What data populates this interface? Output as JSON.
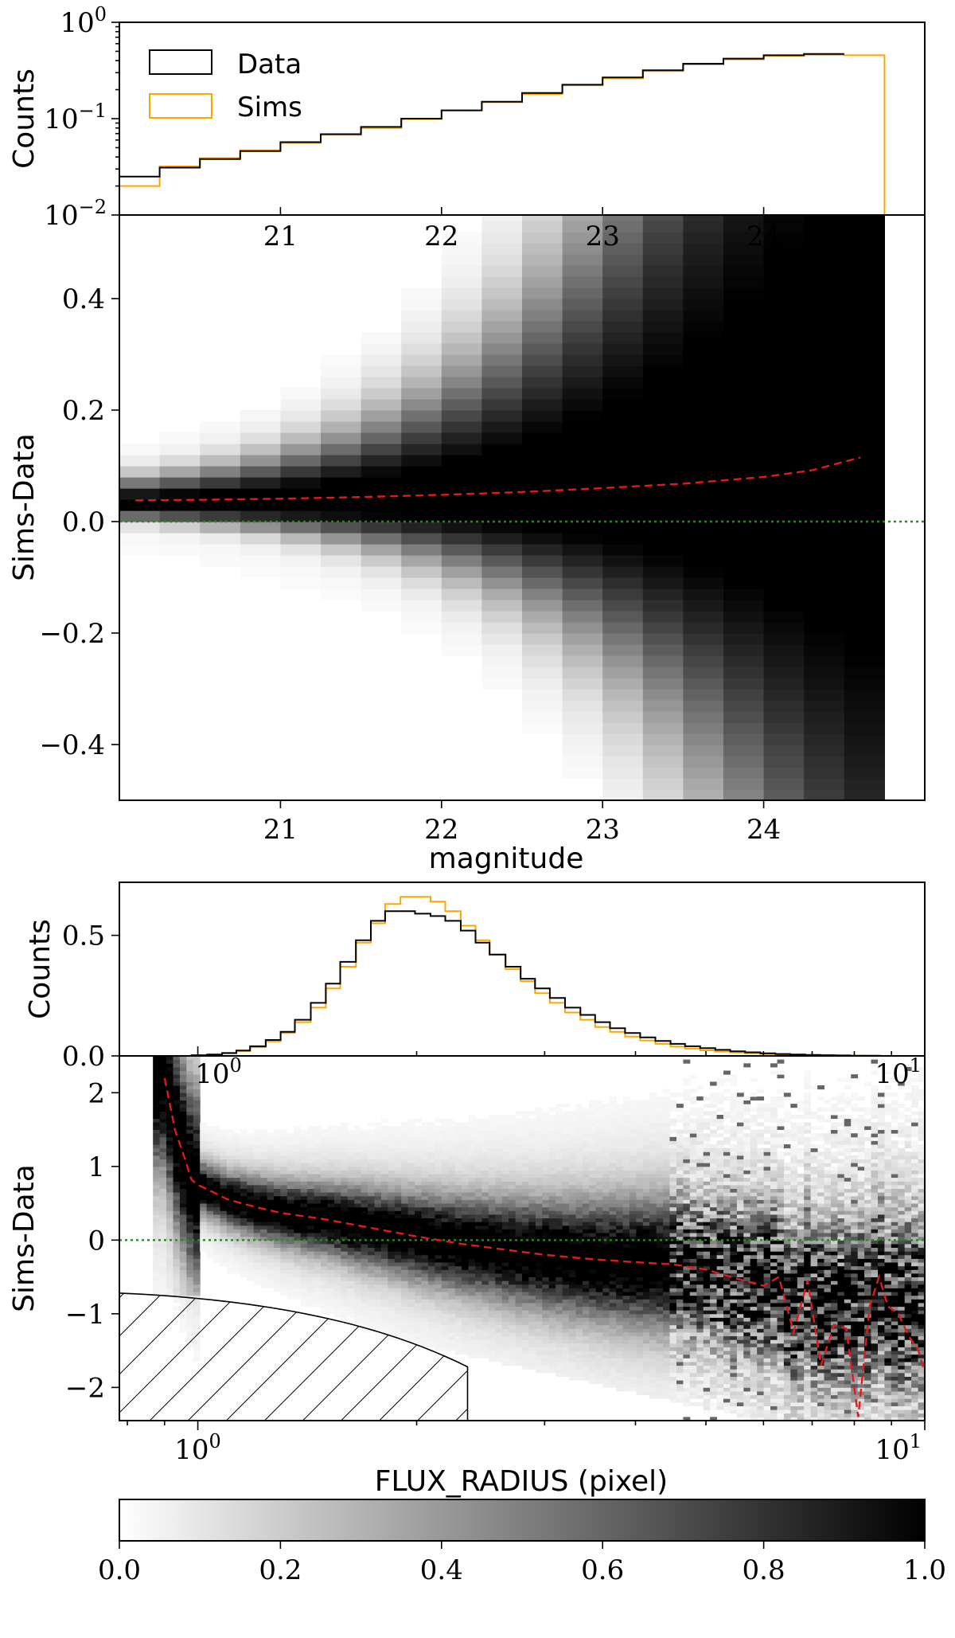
{
  "colors": {
    "data": "#000000",
    "sims": "#ffa500",
    "median": "#e31a1c",
    "zero": "#228b22",
    "cmap": [
      "#ffffff",
      "#000000"
    ]
  },
  "chart_data": [
    {
      "type": "line",
      "panel": "mag-hist",
      "ylabel": "Counts",
      "yscale": "log",
      "ylim": [
        0.01,
        1
      ],
      "yticks": [
        {
          "v": 1,
          "base": "10",
          "exp": "0"
        },
        {
          "v": 0.1,
          "base": "10",
          "exp": "−1"
        },
        {
          "v": 0.01,
          "base": "10",
          "exp": "−2"
        }
      ],
      "xlim": [
        20.0,
        25.0
      ],
      "xticks": [
        "21",
        "22",
        "23",
        "24"
      ],
      "legend": {
        "position": "top-left",
        "entries": [
          "Data",
          "Sims"
        ]
      },
      "bin_edges": [
        20.0,
        20.25,
        20.5,
        20.75,
        21.0,
        21.25,
        21.5,
        21.75,
        22.0,
        22.25,
        22.5,
        22.75,
        23.0,
        23.25,
        23.5,
        23.75,
        24.0,
        24.25,
        24.5,
        24.75
      ],
      "series": [
        {
          "name": "Data",
          "values": [
            0.025,
            0.031,
            0.038,
            0.046,
            0.057,
            0.069,
            0.082,
            0.1,
            0.122,
            0.15,
            0.185,
            0.225,
            0.268,
            0.318,
            0.372,
            0.42,
            0.455,
            0.47,
            null
          ]
        },
        {
          "name": "Sims",
          "values": [
            0.02,
            0.032,
            0.039,
            0.047,
            0.056,
            0.068,
            0.08,
            0.099,
            0.122,
            0.148,
            0.18,
            0.222,
            0.262,
            0.312,
            0.365,
            0.412,
            0.448,
            0.46,
            0.455
          ]
        }
      ]
    },
    {
      "type": "heatmap",
      "panel": "mag-residual",
      "xlabel": "magnitude",
      "ylabel": "Sims-Data",
      "xlim": [
        20.0,
        25.0
      ],
      "ylim": [
        -0.5,
        0.55
      ],
      "xticks": [
        "21",
        "22",
        "23",
        "24"
      ],
      "yticks": [
        {
          "v": 0.4,
          "label": "0.4"
        },
        {
          "v": 0.2,
          "label": "0.2"
        },
        {
          "v": 0.0,
          "label": "0.0"
        },
        {
          "v": -0.2,
          "label": "−0.2"
        },
        {
          "v": -0.4,
          "label": "−0.4"
        }
      ],
      "median": {
        "x": [
          20.1,
          20.5,
          21.0,
          21.5,
          22.0,
          22.5,
          23.0,
          23.5,
          24.0,
          24.3,
          24.6
        ],
        "y": [
          0.038,
          0.039,
          0.041,
          0.044,
          0.048,
          0.053,
          0.06,
          0.068,
          0.08,
          0.092,
          0.115
        ]
      },
      "zero_line": 0.0
    },
    {
      "type": "line",
      "panel": "radius-hist",
      "ylabel": "Counts",
      "ylim": [
        0,
        0.72
      ],
      "yticks": [
        {
          "v": 0.5,
          "label": "0.5"
        },
        {
          "v": 0.0,
          "label": "0.0"
        }
      ],
      "xscale": "log",
      "xlim": [
        0.78,
        10
      ],
      "xticks": [
        {
          "v": 1,
          "base": "10",
          "exp": "0"
        },
        {
          "v": 10,
          "base": "10",
          "exp": "1"
        }
      ],
      "bin_edges": [
        0.78,
        0.82,
        0.86,
        0.9,
        0.94,
        0.98,
        1.03,
        1.08,
        1.13,
        1.18,
        1.24,
        1.3,
        1.36,
        1.43,
        1.5,
        1.57,
        1.65,
        1.73,
        1.81,
        1.9,
        1.99,
        2.09,
        2.19,
        2.3,
        2.41,
        2.52,
        2.65,
        2.78,
        2.91,
        3.05,
        3.2,
        3.36,
        3.52,
        3.69,
        3.87,
        4.06,
        4.26,
        4.47,
        4.68,
        4.91,
        5.15,
        5.4,
        5.66,
        5.94,
        6.23,
        6.53,
        6.85,
        7.18,
        7.53,
        7.9,
        8.28,
        8.68,
        9.1,
        9.55,
        10.0
      ],
      "series": [
        {
          "name": "Data",
          "values": [
            0,
            0,
            0,
            0,
            0,
            0.003,
            0.006,
            0.012,
            0.022,
            0.04,
            0.066,
            0.1,
            0.15,
            0.22,
            0.3,
            0.39,
            0.48,
            0.56,
            0.6,
            0.6,
            0.59,
            0.58,
            0.56,
            0.52,
            0.47,
            0.42,
            0.37,
            0.32,
            0.28,
            0.24,
            0.2,
            0.17,
            0.14,
            0.115,
            0.095,
            0.077,
            0.062,
            0.05,
            0.04,
            0.032,
            0.025,
            0.019,
            0.015,
            0.011,
            0.008,
            0.006,
            0.004,
            0.003,
            0.002,
            0.001,
            0.001,
            0,
            0,
            0
          ]
        },
        {
          "name": "Sims",
          "values": [
            0,
            0,
            0,
            0,
            0,
            0.002,
            0.005,
            0.011,
            0.02,
            0.036,
            0.06,
            0.095,
            0.14,
            0.2,
            0.28,
            0.37,
            0.47,
            0.55,
            0.63,
            0.66,
            0.66,
            0.64,
            0.6,
            0.54,
            0.48,
            0.42,
            0.36,
            0.31,
            0.26,
            0.22,
            0.18,
            0.15,
            0.12,
            0.1,
            0.08,
            0.064,
            0.05,
            0.039,
            0.03,
            0.023,
            0.018,
            0.014,
            0.011,
            0.008,
            0.006,
            0.004,
            0.003,
            0.002,
            0.001,
            0.001,
            0,
            0,
            0,
            0
          ]
        }
      ]
    },
    {
      "type": "heatmap",
      "panel": "radius-residual",
      "xlabel": "FLUX_RADIUS (pixel)",
      "ylabel": "Sims-Data",
      "xscale": "log",
      "xlim": [
        0.78,
        10
      ],
      "ylim": [
        -2.45,
        2.5
      ],
      "xticks": [
        {
          "v": 1,
          "base": "10",
          "exp": "0"
        },
        {
          "v": 10,
          "base": "10",
          "exp": "1"
        }
      ],
      "yticks": [
        {
          "v": 2,
          "label": "2"
        },
        {
          "v": 1,
          "label": "1"
        },
        {
          "v": 0,
          "label": "0"
        },
        {
          "v": -1,
          "label": "−1"
        },
        {
          "v": -2,
          "label": "−2"
        }
      ],
      "median": {
        "x": [
          0.9,
          0.93,
          0.96,
          0.98,
          1.0,
          1.05,
          1.1,
          1.2,
          1.3,
          1.5,
          1.7,
          2.0,
          2.3,
          2.6,
          3.0,
          3.5,
          4.0,
          4.5,
          5.0,
          5.5,
          6.0,
          6.3,
          6.6,
          6.9,
          7.2,
          7.5,
          7.8,
          8.1,
          8.4,
          8.65,
          8.9,
          9.2,
          9.5,
          9.8,
          10.0
        ],
        "y": [
          2.2,
          1.5,
          1.1,
          0.82,
          0.75,
          0.65,
          0.55,
          0.45,
          0.37,
          0.28,
          0.18,
          0.05,
          -0.05,
          -0.12,
          -0.2,
          -0.26,
          -0.3,
          -0.33,
          -0.4,
          -0.52,
          -0.62,
          -0.5,
          -1.25,
          -0.55,
          -1.7,
          -1.15,
          -1.2,
          -2.4,
          -0.9,
          -0.5,
          -0.9,
          -1.0,
          -1.3,
          -1.5,
          -1.8
        ]
      },
      "excluded_region": "hatched",
      "zero_line": 0
    },
    {
      "type": "colorbar",
      "range": [
        0,
        1
      ],
      "ticks": [
        "0.0",
        "0.2",
        "0.4",
        "0.6",
        "0.8",
        "1.0"
      ]
    }
  ]
}
